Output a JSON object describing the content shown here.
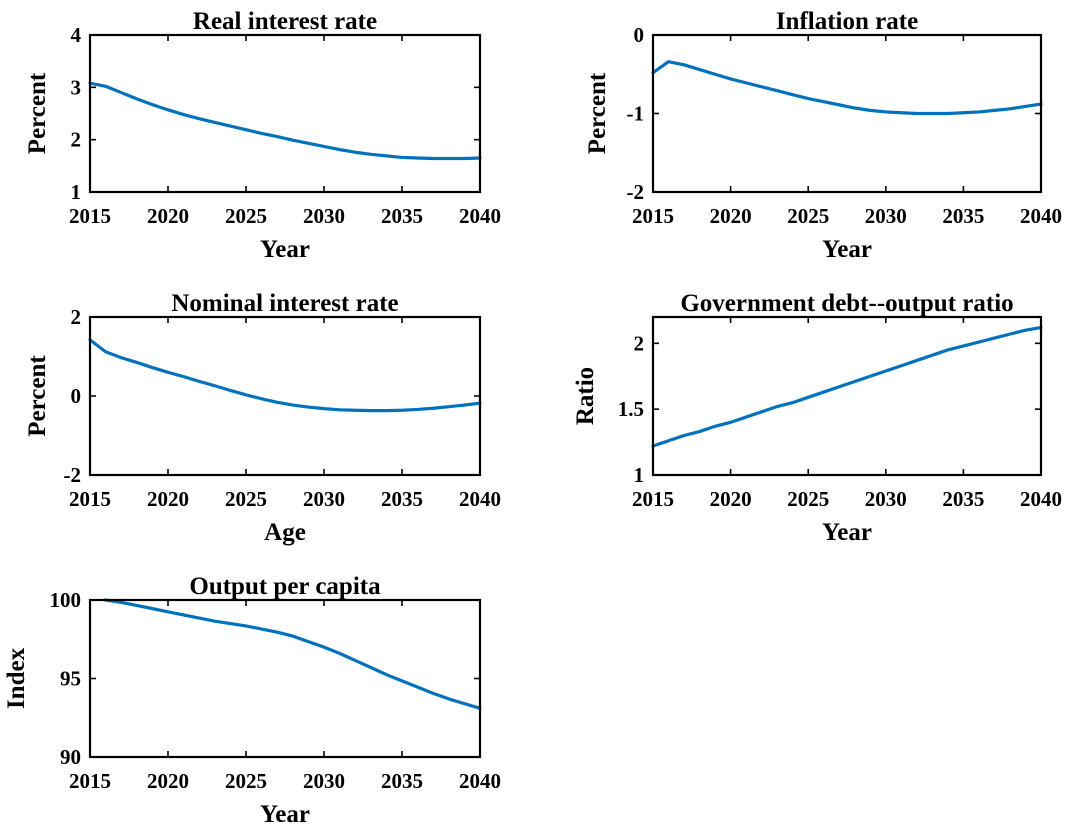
{
  "colors": {
    "line": "#0072BD",
    "axes": "#000000",
    "background": "#ffffff"
  },
  "chart_data": [
    {
      "type": "line",
      "title": "Real interest rate",
      "xlabel": "Year",
      "ylabel": "Percent",
      "xlim": [
        2015,
        2040
      ],
      "ylim": [
        1,
        4
      ],
      "xticks": [
        2015,
        2020,
        2025,
        2030,
        2035,
        2040
      ],
      "yticks": [
        1,
        2,
        3,
        4
      ],
      "grid": false,
      "series": [
        {
          "x": [
            2015,
            2016,
            2017,
            2018,
            2019,
            2020,
            2021,
            2022,
            2023,
            2024,
            2025,
            2026,
            2027,
            2028,
            2029,
            2030,
            2031,
            2032,
            2033,
            2034,
            2035,
            2036,
            2037,
            2038,
            2039,
            2040
          ],
          "values": [
            3.08,
            3.02,
            2.9,
            2.78,
            2.67,
            2.57,
            2.48,
            2.4,
            2.33,
            2.26,
            2.19,
            2.12,
            2.06,
            1.99,
            1.93,
            1.87,
            1.81,
            1.76,
            1.72,
            1.69,
            1.66,
            1.65,
            1.64,
            1.64,
            1.64,
            1.65
          ]
        }
      ]
    },
    {
      "type": "line",
      "title": "Inflation rate",
      "xlabel": "Year",
      "ylabel": "Percent",
      "xlim": [
        2015,
        2040
      ],
      "ylim": [
        -2,
        0
      ],
      "xticks": [
        2015,
        2020,
        2025,
        2030,
        2035,
        2040
      ],
      "yticks": [
        -2,
        -1,
        0
      ],
      "grid": false,
      "series": [
        {
          "x": [
            2015,
            2016,
            2017,
            2018,
            2019,
            2020,
            2021,
            2022,
            2023,
            2024,
            2025,
            2026,
            2027,
            2028,
            2029,
            2030,
            2031,
            2032,
            2033,
            2034,
            2035,
            2036,
            2037,
            2038,
            2039,
            2040
          ],
          "values": [
            -0.48,
            -0.34,
            -0.38,
            -0.44,
            -0.5,
            -0.56,
            -0.61,
            -0.66,
            -0.71,
            -0.76,
            -0.81,
            -0.85,
            -0.89,
            -0.93,
            -0.96,
            -0.98,
            -0.99,
            -1.0,
            -1.0,
            -1.0,
            -0.99,
            -0.98,
            -0.96,
            -0.94,
            -0.91,
            -0.88
          ]
        }
      ]
    },
    {
      "type": "line",
      "title": "Nominal interest rate",
      "xlabel": "Age",
      "ylabel": "Percent",
      "xlim": [
        2015,
        2040
      ],
      "ylim": [
        -2,
        2
      ],
      "xticks": [
        2015,
        2020,
        2025,
        2030,
        2035,
        2040
      ],
      "yticks": [
        -2,
        0,
        2
      ],
      "grid": false,
      "series": [
        {
          "x": [
            2015,
            2016,
            2017,
            2018,
            2019,
            2020,
            2021,
            2022,
            2023,
            2024,
            2025,
            2026,
            2027,
            2028,
            2029,
            2030,
            2031,
            2032,
            2033,
            2034,
            2035,
            2036,
            2037,
            2038,
            2039,
            2040
          ],
          "values": [
            1.42,
            1.12,
            0.97,
            0.85,
            0.72,
            0.6,
            0.49,
            0.37,
            0.26,
            0.14,
            0.03,
            -0.07,
            -0.16,
            -0.23,
            -0.28,
            -0.32,
            -0.35,
            -0.36,
            -0.37,
            -0.37,
            -0.36,
            -0.34,
            -0.31,
            -0.27,
            -0.23,
            -0.18
          ]
        }
      ]
    },
    {
      "type": "line",
      "title": "Government debt--output ratio",
      "xlabel": "Year",
      "ylabel": "Ratio",
      "xlim": [
        2015,
        2040
      ],
      "ylim": [
        1,
        2.2
      ],
      "xticks": [
        2015,
        2020,
        2025,
        2030,
        2035,
        2040
      ],
      "yticks": [
        1,
        1.5,
        2
      ],
      "grid": false,
      "series": [
        {
          "x": [
            2015,
            2016,
            2017,
            2018,
            2019,
            2020,
            2021,
            2022,
            2023,
            2024,
            2025,
            2026,
            2027,
            2028,
            2029,
            2030,
            2031,
            2032,
            2033,
            2034,
            2035,
            2036,
            2037,
            2038,
            2039,
            2040
          ],
          "values": [
            1.22,
            1.26,
            1.3,
            1.33,
            1.37,
            1.4,
            1.44,
            1.48,
            1.52,
            1.55,
            1.59,
            1.63,
            1.67,
            1.71,
            1.75,
            1.79,
            1.83,
            1.87,
            1.91,
            1.95,
            1.98,
            2.01,
            2.04,
            2.07,
            2.1,
            2.12
          ]
        }
      ]
    },
    {
      "type": "line",
      "title": "Output per capita",
      "xlabel": "Year",
      "ylabel": "Index",
      "xlim": [
        2015,
        2040
      ],
      "ylim": [
        90,
        100
      ],
      "xticks": [
        2015,
        2020,
        2025,
        2030,
        2035,
        2040
      ],
      "yticks": [
        90,
        95,
        100
      ],
      "grid": false,
      "series": [
        {
          "x": [
            2016,
            2017,
            2018,
            2019,
            2020,
            2021,
            2022,
            2023,
            2024,
            2025,
            2026,
            2027,
            2028,
            2029,
            2030,
            2031,
            2032,
            2033,
            2034,
            2035,
            2036,
            2037,
            2038,
            2039,
            2040
          ],
          "values": [
            100.0,
            99.85,
            99.65,
            99.45,
            99.25,
            99.05,
            98.85,
            98.65,
            98.5,
            98.35,
            98.15,
            97.95,
            97.7,
            97.35,
            97.0,
            96.6,
            96.15,
            95.7,
            95.25,
            94.85,
            94.45,
            94.05,
            93.7,
            93.4,
            93.1
          ]
        }
      ]
    }
  ]
}
